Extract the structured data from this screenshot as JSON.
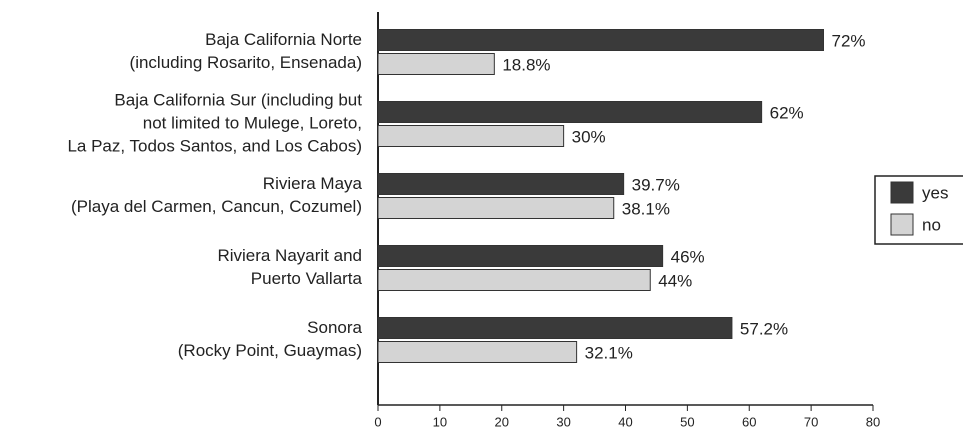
{
  "chart_data": {
    "type": "bar",
    "orientation": "horizontal",
    "categories": [
      [
        "Baja California Norte",
        "(including Rosarito, Ensenada)"
      ],
      [
        "Baja California Sur (including but",
        "not limited to Mulege, Loreto,",
        "La Paz, Todos Santos, and Los Cabos)"
      ],
      [
        "Riviera Maya",
        "(Playa del Carmen, Cancun, Cozumel)"
      ],
      [
        "Riviera Nayarit and",
        "Puerto Vallarta"
      ],
      [
        "Sonora",
        "(Rocky Point, Guaymas)"
      ]
    ],
    "series": [
      {
        "name": "yes",
        "color": "#3a3a3a",
        "values": [
          72,
          62,
          39.7,
          46,
          57.2
        ],
        "value_labels": [
          "72%",
          "62%",
          "39.7%",
          "46%",
          "57.2%"
        ]
      },
      {
        "name": "no",
        "color": "#d4d4d4",
        "values": [
          18.8,
          30,
          38.1,
          44,
          32.1
        ],
        "value_labels": [
          "18.8%",
          "30%",
          "38.1%",
          "44%",
          "32.1%"
        ]
      }
    ],
    "xlim": [
      0,
      80
    ],
    "xticks": [
      0,
      10,
      20,
      30,
      40,
      50,
      60,
      70,
      80
    ],
    "legend": "right"
  }
}
